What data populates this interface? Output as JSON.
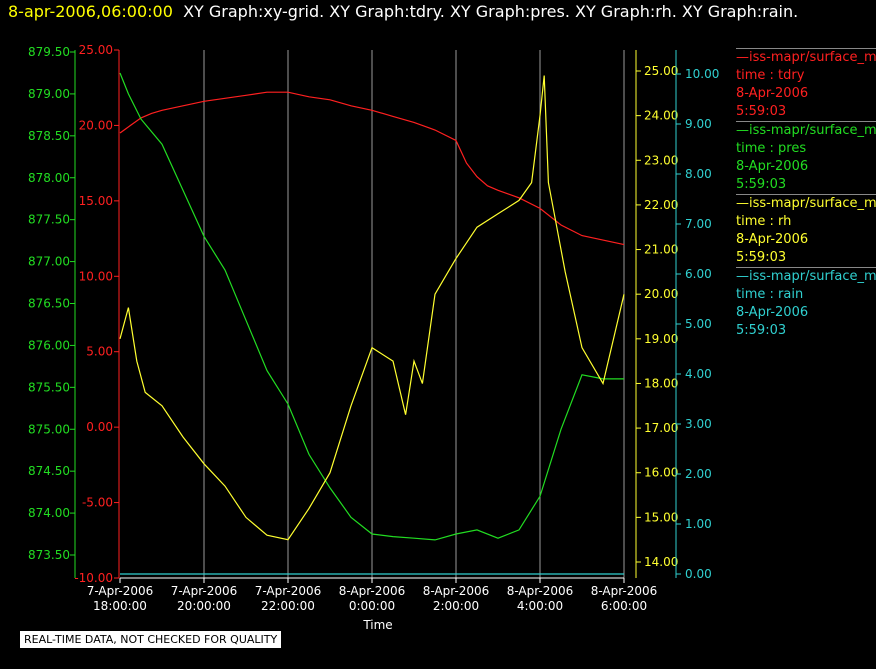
{
  "header": {
    "timestamp": "8-apr-2006,06:00:00",
    "graphs": "XY Graph:xy-grid.  XY Graph:tdry.  XY Graph:pres.  XY Graph:rh.  XY Graph:rain."
  },
  "legend": [
    {
      "name": "—iss-mapr/surface_m",
      "axis": "time : tdry",
      "date": "8-Apr-2006",
      "time": "5:59:03",
      "color": "#ff2020"
    },
    {
      "name": "—iss-mapr/surface_m",
      "axis": "time : pres",
      "date": "8-Apr-2006",
      "time": "5:59:03",
      "color": "#22dd22"
    },
    {
      "name": "—iss-mapr/surface_m",
      "axis": "time : rh",
      "date": "8-Apr-2006",
      "time": "5:59:03",
      "color": "#ffff30"
    },
    {
      "name": "—iss-mapr/surface_m",
      "axis": "time : rain",
      "date": "8-Apr-2006",
      "time": "5:59:03",
      "color": "#30d0d0"
    }
  ],
  "quality_note": "REAL-TIME DATA, NOT CHECKED FOR QUALITY",
  "chart_data": {
    "type": "line",
    "xlabel": "Time",
    "x_ticks": [
      {
        "h": 18,
        "d": "7-Apr-2006",
        "t": "18:00:00"
      },
      {
        "h": 20,
        "d": "7-Apr-2006",
        "t": "20:00:00"
      },
      {
        "h": 22,
        "d": "7-Apr-2006",
        "t": "22:00:00"
      },
      {
        "h": 24,
        "d": "8-Apr-2006",
        "t": "0:00:00"
      },
      {
        "h": 26,
        "d": "8-Apr-2006",
        "t": "2:00:00"
      },
      {
        "h": 28,
        "d": "8-Apr-2006",
        "t": "4:00:00"
      },
      {
        "h": 30,
        "d": "8-Apr-2006",
        "t": "6:00:00"
      }
    ],
    "xlim": [
      18,
      30
    ],
    "grid": "vertical",
    "axes": {
      "pres": {
        "color": "#22dd22",
        "ylim": [
          873.4,
          879.5
        ],
        "ticks": [
          "873.50",
          "874.00",
          "874.50",
          "875.00",
          "875.50",
          "876.00",
          "876.50",
          "877.00",
          "877.50",
          "878.00",
          "878.50",
          "879.00",
          "879.50"
        ]
      },
      "tdry": {
        "color": "#ff2020",
        "ylim": [
          -10,
          25
        ],
        "ticks": [
          "-10.00",
          "-5.00",
          "0.00",
          "5.00",
          "10.00",
          "15.00",
          "20.00",
          "25.00"
        ]
      },
      "rh": {
        "color": "#ffff30",
        "ylim": [
          13.8,
          25.3
        ],
        "ticks": [
          "14.00",
          "15.00",
          "16.00",
          "17.00",
          "18.00",
          "19.00",
          "20.00",
          "21.00",
          "22.00",
          "23.00",
          "24.00",
          "25.00"
        ]
      },
      "rain": {
        "color": "#30d0d0",
        "ylim": [
          0,
          10.4
        ],
        "ticks": [
          "0.00",
          "1.00",
          "2.00",
          "3.00",
          "4.00",
          "5.00",
          "6.00",
          "7.00",
          "8.00",
          "9.00",
          "10.00"
        ]
      }
    },
    "series": [
      {
        "key": "tdry",
        "color": "#ff2020",
        "x": [
          18.0,
          18.25,
          18.5,
          18.75,
          19.0,
          19.5,
          20.0,
          20.5,
          21.0,
          21.5,
          22.0,
          22.5,
          23.0,
          23.5,
          24.0,
          24.5,
          25.0,
          25.5,
          26.0,
          26.25,
          26.5,
          26.75,
          27.0,
          27.5,
          28.0,
          28.5,
          29.0,
          29.5,
          30.0
        ],
        "y": [
          19.5,
          20.0,
          20.5,
          20.8,
          21.0,
          21.3,
          21.6,
          21.8,
          22.0,
          22.2,
          22.2,
          21.9,
          21.7,
          21.3,
          21.0,
          20.6,
          20.2,
          19.7,
          19.0,
          17.5,
          16.6,
          16.0,
          15.7,
          15.2,
          14.5,
          13.4,
          12.7,
          12.4,
          12.1
        ]
      },
      {
        "key": "pres",
        "color": "#22dd22",
        "x": [
          18.0,
          18.2,
          18.5,
          19.0,
          19.5,
          20.0,
          20.5,
          21.0,
          21.5,
          22.0,
          22.5,
          23.0,
          23.5,
          24.0,
          24.5,
          25.0,
          25.5,
          26.0,
          26.5,
          27.0,
          27.5,
          28.0,
          28.5,
          29.0,
          29.5,
          30.0
        ],
        "y": [
          879.25,
          879.0,
          878.7,
          878.4,
          877.85,
          877.3,
          876.9,
          876.3,
          875.7,
          875.3,
          874.7,
          874.3,
          873.95,
          873.75,
          873.72,
          873.7,
          873.68,
          873.75,
          873.8,
          873.7,
          873.8,
          874.2,
          875.0,
          875.65,
          875.6,
          875.6
        ]
      },
      {
        "key": "rh",
        "color": "#ffff30",
        "x": [
          18.0,
          18.2,
          18.4,
          18.6,
          19.0,
          19.5,
          20.0,
          20.5,
          21.0,
          21.5,
          22.0,
          22.5,
          23.0,
          23.5,
          24.0,
          24.5,
          24.8,
          25.0,
          25.2,
          25.5,
          26.0,
          26.5,
          27.0,
          27.5,
          27.8,
          28.0,
          28.1,
          28.2,
          28.4,
          28.6,
          29.0,
          29.5,
          30.0
        ],
        "y": [
          19.0,
          19.7,
          18.5,
          17.8,
          17.5,
          16.8,
          16.2,
          15.7,
          15.0,
          14.6,
          14.5,
          15.2,
          16.0,
          17.5,
          18.8,
          18.5,
          17.3,
          18.5,
          18.0,
          20.0,
          20.8,
          21.5,
          21.8,
          22.1,
          22.5,
          24.0,
          24.9,
          22.5,
          21.5,
          20.5,
          18.8,
          18.0,
          20.0
        ]
      },
      {
        "key": "rain",
        "color": "#30d0d0",
        "x": [
          18.0,
          30.0
        ],
        "y": [
          0.0,
          0.0
        ]
      }
    ]
  }
}
